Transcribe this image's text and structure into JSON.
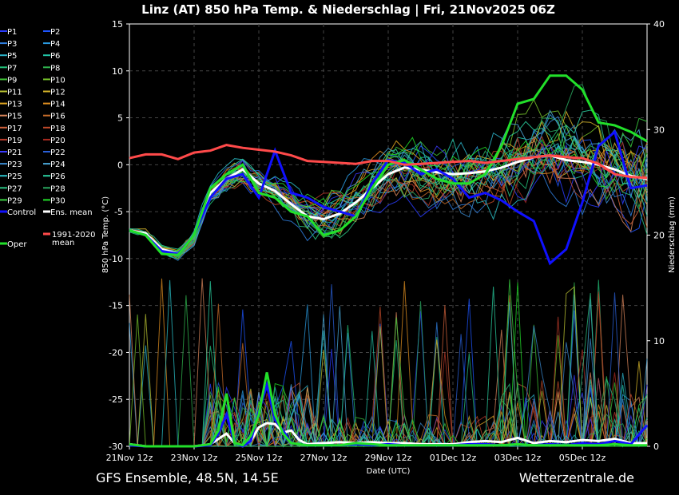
{
  "title": "Linz  (AT)  850 hPa Temp. & Niederschlag | Fri, 21Nov2025 06Z",
  "footer_left": "GFS Ensemble, 48.5N, 14.5E",
  "footer_right": "Wetterzentrale.de",
  "chart_data": {
    "type": "line",
    "title": "Linz  (AT)  850 hPa Temp. & Niederschlag | Fri, 21Nov2025 06Z",
    "xlabel": "Date (UTC)",
    "ylabel": "850 hPa Temp. (°C)",
    "y2label": "Niederschlag (mm)",
    "ylim": [
      -30,
      15
    ],
    "y2lim": [
      0,
      40
    ],
    "xlim": [
      0,
      384
    ],
    "x_unit": "hours since 21Nov 12z",
    "grid": true,
    "legend_position": "left",
    "x_ticks": [
      {
        "x": 0,
        "label": "21Nov 12z"
      },
      {
        "x": 48,
        "label": "23Nov 12z"
      },
      {
        "x": 96,
        "label": "25Nov 12z"
      },
      {
        "x": 144,
        "label": "27Nov 12z"
      },
      {
        "x": 192,
        "label": "29Nov 12z"
      },
      {
        "x": 240,
        "label": "01Dec 12z"
      },
      {
        "x": 288,
        "label": "03Dec 12z"
      },
      {
        "x": 336,
        "label": "05Dec 12z"
      }
    ],
    "y_ticks": [
      "15",
      "10",
      "5",
      "0",
      "-5",
      "-10",
      "-15",
      "-20",
      "-25",
      "-30"
    ],
    "y2_ticks": [
      "40",
      "30",
      "20",
      "10",
      "0"
    ],
    "legend": [
      {
        "name": "P1",
        "color": "#2a3cff"
      },
      {
        "name": "P2",
        "color": "#1e56ff"
      },
      {
        "name": "P3",
        "color": "#2f7fe0"
      },
      {
        "name": "P4",
        "color": "#2a9adf"
      },
      {
        "name": "P5",
        "color": "#2bb3c9"
      },
      {
        "name": "P6",
        "color": "#21c6a8"
      },
      {
        "name": "P7",
        "color": "#23c27a"
      },
      {
        "name": "P8",
        "color": "#30b64f"
      },
      {
        "name": "P9",
        "color": "#3fbf35"
      },
      {
        "name": "P10",
        "color": "#75c22a"
      },
      {
        "name": "P11",
        "color": "#b9c232"
      },
      {
        "name": "P12",
        "color": "#d6b52a"
      },
      {
        "name": "P13",
        "color": "#e0a520"
      },
      {
        "name": "P14",
        "color": "#e08f20"
      },
      {
        "name": "P15",
        "color": "#d8845a"
      },
      {
        "name": "P16",
        "color": "#c86e2a"
      },
      {
        "name": "P17",
        "color": "#d0603a"
      },
      {
        "name": "P18",
        "color": "#c04a2a"
      },
      {
        "name": "P19",
        "color": "#b83a2a"
      },
      {
        "name": "P20",
        "color": "#a82a20"
      },
      {
        "name": "P21",
        "color": "#3a3aff"
      },
      {
        "name": "P22",
        "color": "#2a60d8"
      },
      {
        "name": "P23",
        "color": "#3a8ad0"
      },
      {
        "name": "P24",
        "color": "#4aa8d8"
      },
      {
        "name": "P25",
        "color": "#2ac0c8"
      },
      {
        "name": "P26",
        "color": "#2ad0a0"
      },
      {
        "name": "P27",
        "color": "#2ac080"
      },
      {
        "name": "P28",
        "color": "#2aa860"
      },
      {
        "name": "P29",
        "color": "#3ad040"
      },
      {
        "name": "P30",
        "color": "#22e02a"
      },
      {
        "name": "Control",
        "color": "#1010ff"
      },
      {
        "name": "Ens. mean",
        "color": "#ffffff"
      },
      {
        "name": "1991-2020 mean",
        "color": "#ff4a4a"
      },
      {
        "name": "Oper",
        "color": "#22e02a"
      }
    ],
    "series": [
      {
        "name": "Ens. mean",
        "color": "#ffffff",
        "width": 3,
        "x": [
          0,
          12,
          24,
          36,
          48,
          60,
          72,
          84,
          96,
          108,
          120,
          132,
          144,
          156,
          168,
          180,
          192,
          204,
          216,
          228,
          240,
          252,
          264,
          276,
          288,
          300,
          312,
          324,
          336,
          348,
          360,
          372,
          384
        ],
        "y": [
          -7,
          -7.3,
          -9,
          -9.5,
          -7.5,
          -3,
          -1.5,
          -0.5,
          -2,
          -2.8,
          -4.2,
          -5.5,
          -5.8,
          -5.2,
          -4,
          -2.5,
          -1,
          -0.3,
          -0.5,
          -0.8,
          -1,
          -0.9,
          -0.7,
          -0.3,
          0.3,
          0.8,
          1,
          0.5,
          0.3,
          0,
          -0.5,
          -1.2,
          -1.5
        ]
      },
      {
        "name": "Control",
        "color": "#1010ff",
        "width": 3,
        "x": [
          0,
          12,
          24,
          36,
          48,
          60,
          72,
          84,
          96,
          108,
          120,
          132,
          144,
          156,
          168,
          180,
          192,
          204,
          216,
          228,
          240,
          252,
          264,
          276,
          288,
          300,
          312,
          324,
          336,
          348,
          360,
          372,
          384
        ],
        "y": [
          -7,
          -7.5,
          -9.2,
          -9.5,
          -7.5,
          -3.5,
          -1.5,
          -1,
          -3.5,
          1.5,
          -3,
          -3.5,
          -4.5,
          -5,
          -5.5,
          -2,
          0.5,
          0.2,
          -1,
          -0.5,
          -1.5,
          -3.5,
          -3,
          -3.8,
          -5,
          -6,
          -10.5,
          -9,
          -4,
          2,
          3.5,
          -2.5,
          -2.2
        ]
      },
      {
        "name": "Oper",
        "color": "#22e02a",
        "width": 3,
        "x": [
          0,
          12,
          24,
          36,
          48,
          60,
          72,
          84,
          96,
          108,
          120,
          132,
          144,
          156,
          168,
          180,
          192,
          204,
          216,
          228,
          240,
          252,
          264,
          276,
          288,
          300,
          312,
          324,
          336,
          348,
          360,
          372,
          384
        ],
        "y": [
          -7,
          -7.5,
          -9.5,
          -9.6,
          -7.5,
          -2.5,
          -1,
          0,
          -3,
          -3.5,
          -5,
          -5.5,
          -7.5,
          -7,
          -5.5,
          -2.5,
          0,
          0.5,
          -0.5,
          -1.5,
          -2,
          -2,
          -1,
          2,
          6.5,
          7,
          9.5,
          9.5,
          8,
          4.5,
          4.2,
          3.5,
          2.5
        ]
      },
      {
        "name": "1991-2020 mean",
        "color": "#ff4a4a",
        "width": 3,
        "x": [
          0,
          12,
          24,
          36,
          48,
          60,
          72,
          84,
          96,
          108,
          120,
          132,
          144,
          156,
          168,
          180,
          192,
          204,
          216,
          228,
          240,
          252,
          264,
          276,
          288,
          300,
          312,
          324,
          336,
          348,
          360,
          372,
          384
        ],
        "y": [
          0.7,
          1.1,
          1.1,
          0.6,
          1.3,
          1.5,
          2.1,
          1.8,
          1.6,
          1.4,
          1,
          0.4,
          0.3,
          0.2,
          0.1,
          0.4,
          0.4,
          0,
          0.1,
          0.2,
          0.3,
          0.4,
          0.2,
          0.4,
          0.6,
          0.8,
          1,
          0.8,
          0.7,
          0.1,
          -1,
          -1.3,
          -1.4
        ]
      }
    ],
    "precip_series": [
      {
        "name": "Ens. mean",
        "color": "#ffffff",
        "width": 3,
        "x": [
          0,
          12,
          24,
          36,
          48,
          60,
          72,
          78,
          84,
          90,
          96,
          102,
          108,
          114,
          120,
          126,
          132,
          144,
          156,
          168,
          180,
          192,
          204,
          216,
          228,
          240,
          252,
          264,
          276,
          288,
          300,
          312,
          324,
          336,
          348,
          360,
          372,
          384
        ],
        "y": [
          0.2,
          0,
          0,
          0,
          0,
          0.2,
          1.2,
          0.3,
          0,
          0.5,
          1.8,
          2.2,
          2.1,
          1.3,
          1.5,
          0.6,
          0.2,
          0.3,
          0.4,
          0.3,
          0.4,
          0.3,
          0.3,
          0.2,
          0.2,
          0.2,
          0.4,
          0.5,
          0.4,
          0.8,
          0.3,
          0.5,
          0.4,
          0.6,
          0.5,
          0.7,
          0.3,
          0.3
        ]
      },
      {
        "name": "Control",
        "color": "#1010ff",
        "width": 3,
        "x": [
          0,
          12,
          24,
          36,
          48,
          60,
          66,
          72,
          78,
          84,
          90,
          96,
          102,
          108,
          114,
          120,
          132,
          144,
          156,
          168,
          180,
          192,
          204,
          216,
          228,
          240,
          252,
          264,
          276,
          288,
          300,
          312,
          324,
          336,
          348,
          360,
          372,
          384
        ],
        "y": [
          0.1,
          0,
          0,
          0,
          0,
          0.1,
          1.2,
          3,
          0.3,
          0,
          0.5,
          3.3,
          5.8,
          2.5,
          1.5,
          0.3,
          0.1,
          0.1,
          0.1,
          0.2,
          0.1,
          0.2,
          0.1,
          0.1,
          0.1,
          0.1,
          0.2,
          0.2,
          0.1,
          0.2,
          0.1,
          0.2,
          0.1,
          0.3,
          0.2,
          0.5,
          0.2,
          2
        ]
      },
      {
        "name": "Oper",
        "color": "#22e02a",
        "width": 3,
        "x": [
          0,
          12,
          24,
          36,
          48,
          60,
          66,
          72,
          78,
          84,
          90,
          96,
          102,
          108,
          114,
          120,
          132,
          144,
          156,
          168,
          180,
          192,
          204,
          216,
          228,
          240,
          252,
          264,
          276,
          288,
          300,
          312,
          324,
          336,
          348,
          360,
          372,
          384
        ],
        "y": [
          0.2,
          0,
          0,
          0,
          0,
          0.2,
          1.5,
          5,
          0.3,
          0.1,
          1,
          3,
          7,
          3,
          1.2,
          0.3,
          0.1,
          0.1,
          0.1,
          0.3,
          0.2,
          0.1,
          0.1,
          0.1,
          0.1,
          0.1,
          0.1,
          0.1,
          0.1,
          0.2,
          0.1,
          0.1,
          0.1,
          0.1,
          0.1,
          0.2,
          0.1,
          0.1
        ]
      }
    ]
  }
}
